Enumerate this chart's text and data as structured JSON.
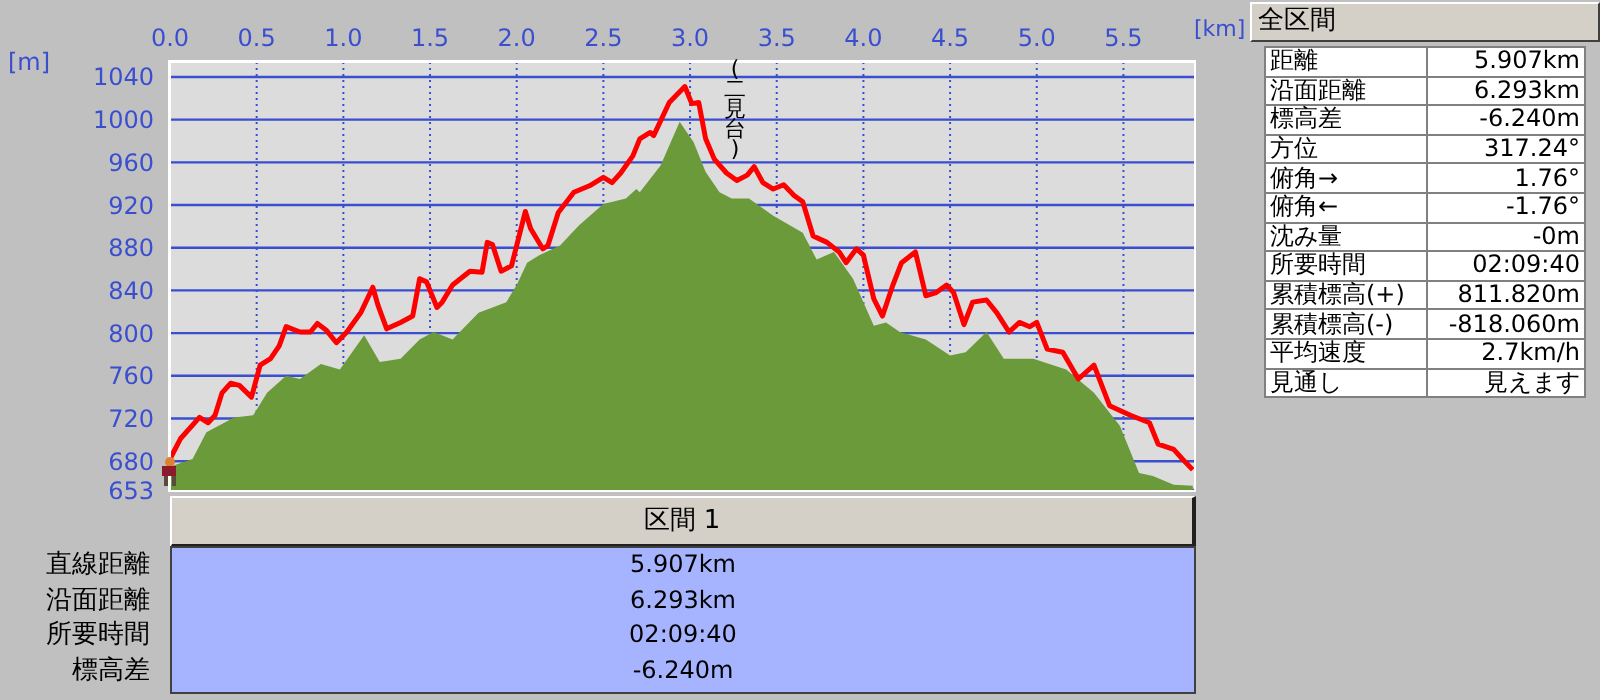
{
  "chart_data": {
    "type": "area",
    "xlabel": "[km]",
    "ylabel": "[m]",
    "xlim": [
      0,
      5.907
    ],
    "ylim": [
      653,
      1054
    ],
    "xticks": [
      {
        "value": 0,
        "label": "0.0"
      },
      0.5,
      {
        "value": 1,
        "label": "1.0"
      },
      1.5,
      {
        "value": 2,
        "label": "2.0"
      },
      2.5,
      {
        "value": 3,
        "label": "3.0"
      },
      3.5,
      {
        "value": 4,
        "label": "4.0"
      },
      4.5,
      {
        "value": 5,
        "label": "5.0"
      },
      5.5
    ],
    "yticks": [
      653,
      680,
      720,
      760,
      800,
      840,
      880,
      920,
      960,
      1000,
      1040
    ],
    "grid": true,
    "legend": false,
    "series": [
      {
        "color": "#6a9a3a",
        "x": [
          0,
          0.02,
          0.13,
          0.21,
          0.37,
          0.48,
          0.56,
          0.67,
          0.75,
          0.87,
          0.98,
          1.12,
          1.21,
          1.33,
          1.44,
          1.52,
          1.63,
          1.78,
          1.94,
          2.0,
          2.06,
          2.13,
          2.25,
          2.36,
          2.5,
          2.63,
          2.69,
          2.71,
          2.83,
          2.94,
          3.02,
          3.09,
          3.17,
          3.24,
          3.34,
          3.48,
          3.65,
          3.73,
          3.83,
          3.94,
          4.06,
          4.13,
          4.21,
          4.36,
          4.5,
          4.59,
          4.71,
          4.81,
          4.98,
          5.17,
          5.33,
          5.48,
          5.59,
          5.67,
          5.79,
          5.9
        ],
        "values": [
          672,
          676,
          682,
          707,
          721,
          723,
          744,
          760,
          757,
          771,
          766,
          798,
          773,
          776,
          794,
          801,
          794,
          819,
          829,
          845,
          866,
          873,
          882,
          901,
          921,
          926,
          935,
          932,
          957,
          998,
          979,
          951,
          932,
          926,
          926,
          910,
          894,
          869,
          876,
          851,
          807,
          810,
          801,
          794,
          779,
          782,
          801,
          776,
          776,
          766,
          744,
          713,
          669,
          666,
          658,
          657
        ]
      },
      {
        "type": "line",
        "color": "#ff0000",
        "x": [
          0,
          0.06,
          0.17,
          0.22,
          0.26,
          0.3,
          0.35,
          0.4,
          0.47,
          0.52,
          0.58,
          0.63,
          0.67,
          0.75,
          0.81,
          0.85,
          0.9,
          0.96,
          1.02,
          1.1,
          1.17,
          1.2,
          1.25,
          1.33,
          1.4,
          1.44,
          1.48,
          1.54,
          1.57,
          1.63,
          1.73,
          1.8,
          1.83,
          1.86,
          1.91,
          1.97,
          2.05,
          2.08,
          2.15,
          2.18,
          2.24,
          2.33,
          2.42,
          2.5,
          2.55,
          2.6,
          2.67,
          2.71,
          2.77,
          2.79,
          2.88,
          2.97,
          3.01,
          3.05,
          3.09,
          3.14,
          3.21,
          3.27,
          3.33,
          3.37,
          3.42,
          3.48,
          3.54,
          3.6,
          3.65,
          3.71,
          3.79,
          3.86,
          3.9,
          3.96,
          4.0,
          4.06,
          4.11,
          4.17,
          4.22,
          4.3,
          4.36,
          4.42,
          4.48,
          4.52,
          4.58,
          4.63,
          4.71,
          4.77,
          4.84,
          4.9,
          4.96,
          5.0,
          5.06,
          5.15,
          5.24,
          5.33,
          5.42,
          5.54,
          5.65,
          5.7,
          5.79,
          5.84,
          5.9
        ],
        "values": [
          682,
          701,
          721,
          716,
          723,
          744,
          753,
          751,
          740,
          770,
          776,
          788,
          806,
          801,
          801,
          809,
          803,
          791,
          801,
          819,
          843,
          826,
          804,
          810,
          816,
          851,
          848,
          824,
          829,
          845,
          858,
          857,
          885,
          883,
          858,
          863,
          914,
          898,
          879,
          882,
          913,
          932,
          938,
          946,
          941,
          950,
          966,
          982,
          988,
          985,
          1016,
          1031,
          1015,
          1016,
          982,
          963,
          950,
          943,
          948,
          956,
          941,
          935,
          939,
          929,
          923,
          891,
          885,
          876,
          866,
          879,
          873,
          832,
          816,
          845,
          866,
          876,
          835,
          838,
          845,
          838,
          808,
          829,
          831,
          819,
          801,
          810,
          806,
          810,
          785,
          782,
          757,
          770,
          732,
          723,
          716,
          696,
          691,
          682,
          672
        ]
      }
    ],
    "annotations": [
      "(二見台)",
      "全区間",
      "距離",
      "5.907km",
      "沿面距離",
      "6.293km",
      "標高差",
      "-6.240m",
      "方位",
      "317.24°",
      "俯角→",
      "1.76°",
      "俯角←",
      "-1.76°",
      "沈み量",
      "-0m",
      "所要時間",
      "02:09:40",
      "累積標高(+)",
      "811.820m",
      "累積標高(-)",
      "-818.060m",
      "平均速度",
      "2.7km/h",
      "見通し",
      "見えます",
      "区間 1",
      "直線距離",
      "5.907km",
      "沿面距離",
      "6.293km",
      "所要時間",
      "02:09:40",
      "標高差",
      "-6.240m"
    ]
  }
}
